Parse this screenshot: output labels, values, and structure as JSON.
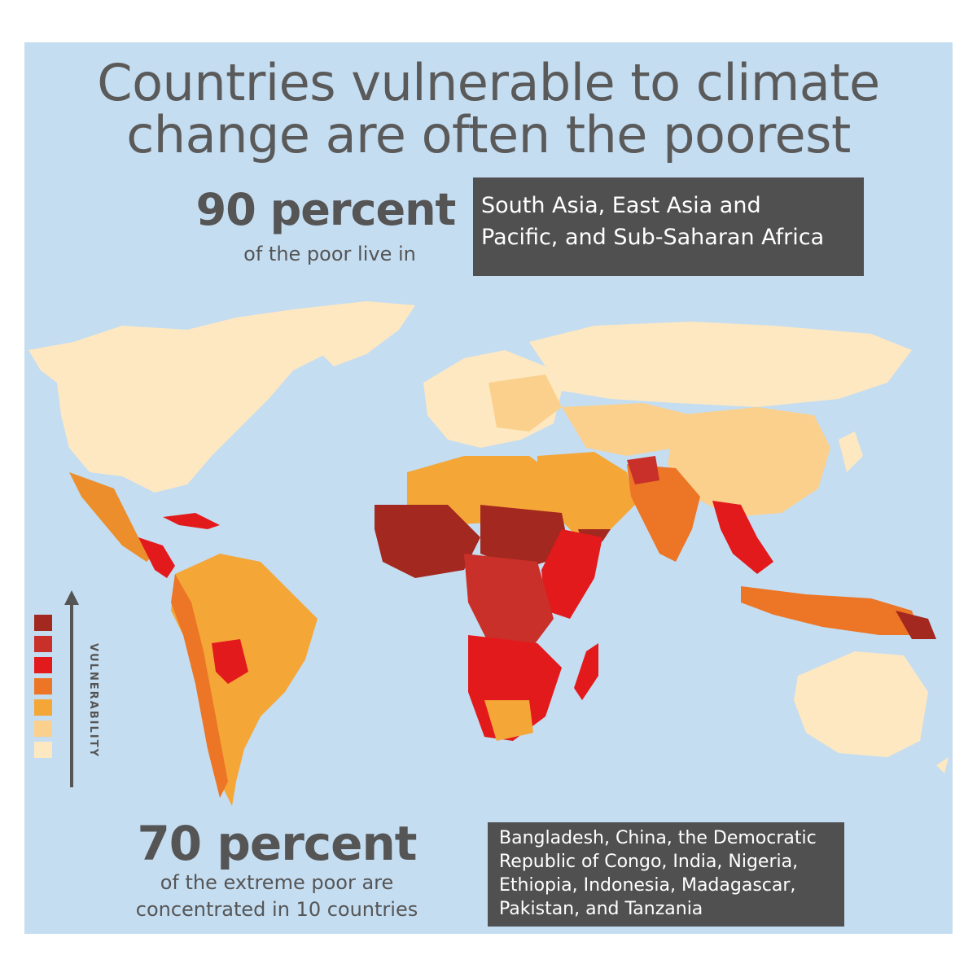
{
  "title": {
    "line1": "Countries vulnerable to climate",
    "line2": "change are often the poorest"
  },
  "stat_top": {
    "value": "90 percent",
    "subtitle": "of the poor live in",
    "box_line1": "South Asia, East Asia and",
    "box_line2": "Pacific, and Sub-Saharan Africa"
  },
  "stat_bottom": {
    "value": "70 percent",
    "subtitle_line1": "of the extreme poor are",
    "subtitle_line2": "concentrated in 10 countries",
    "box_lines": [
      "Bangladesh, China, the Democratic",
      "Republic of Congo, India, Nigeria,",
      "Ethiopia, Indonesia, Madagascar,",
      "Pakistan, and Tanzania"
    ]
  },
  "legend": {
    "label": "VULNERABILITY",
    "colors_high_to_low": [
      "#a3281f",
      "#c9302a",
      "#e31a1c",
      "#ec7526",
      "#f4a637",
      "#fbd08c",
      "#fde8c2"
    ]
  },
  "colors": {
    "background": "#c5ddf1",
    "land_lowest": "#fde8c2",
    "text_gray": "#555555",
    "box_fill": "#505050"
  }
}
